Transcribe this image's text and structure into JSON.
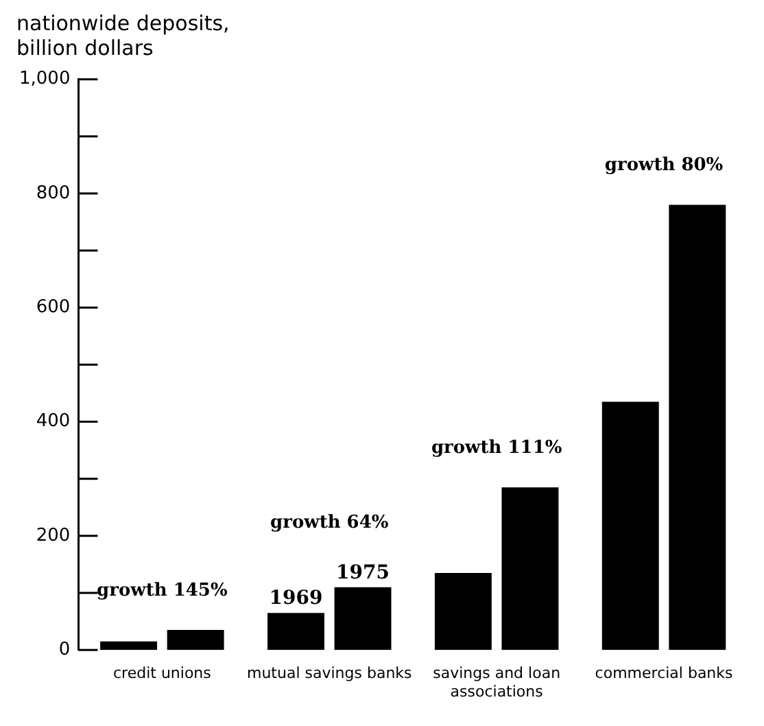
{
  "chart_data": {
    "type": "bar",
    "ylabel": "nationwide deposits, billion dollars",
    "categories": [
      "credit unions",
      "mutual savings banks",
      "savings and loan associations",
      "commercial banks"
    ],
    "series": [
      {
        "name": "1969",
        "color": "#000000",
        "values": [
          15,
          65,
          135,
          435
        ]
      },
      {
        "name": "1975",
        "color": "#000000",
        "values": [
          35,
          110,
          285,
          780
        ]
      }
    ],
    "ylim": [
      0,
      1000
    ],
    "yticks": [
      0,
      {
        "value": 100,
        "label": null
      },
      200,
      {
        "value": 300,
        "label": null
      },
      400,
      {
        "value": 500,
        "label": null
      },
      600,
      {
        "value": 700,
        "label": null
      },
      800,
      {
        "value": 900,
        "label": null
      },
      {
        "value": 1000,
        "label": "1,000"
      }
    ],
    "annotations": [
      "growth 145%",
      "growth 64%",
      "growth 111%",
      "growth 80%"
    ],
    "legend": false
  }
}
